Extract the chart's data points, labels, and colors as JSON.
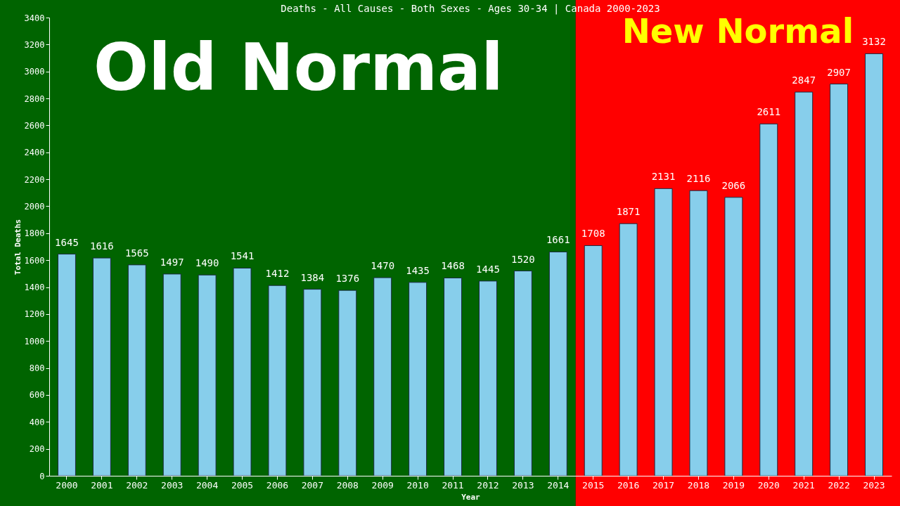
{
  "chart_data": {
    "type": "bar",
    "title": "Deaths - All Causes - Both Sexes - Ages 30-34 | Canada 2000-2023",
    "xlabel": "Year",
    "ylabel": "Total Deaths",
    "categories": [
      "2000",
      "2001",
      "2002",
      "2003",
      "2004",
      "2005",
      "2006",
      "2007",
      "2008",
      "2009",
      "2010",
      "2011",
      "2012",
      "2013",
      "2014",
      "2015",
      "2016",
      "2017",
      "2018",
      "2019",
      "2020",
      "2021",
      "2022",
      "2023"
    ],
    "values": [
      1645,
      1616,
      1565,
      1497,
      1490,
      1541,
      1412,
      1384,
      1376,
      1470,
      1435,
      1468,
      1445,
      1520,
      1661,
      1708,
      1871,
      2131,
      2116,
      2066,
      2611,
      2847,
      2907,
      3132
    ],
    "color": "#87ceeb",
    "data_labels": true,
    "grid": false,
    "ylim": [
      0,
      3400
    ],
    "yticks": [
      0,
      200,
      400,
      600,
      800,
      1000,
      1200,
      1400,
      1600,
      1800,
      2000,
      2200,
      2400,
      2600,
      2800,
      3000,
      3200,
      3400
    ],
    "bands": [
      {
        "axis": "x",
        "from": "2000",
        "to": "2014",
        "label": "Old Normal",
        "color": "#006400"
      },
      {
        "axis": "x",
        "from": "2015",
        "to": "2023",
        "label": "New Normal",
        "color": "#ff0000"
      }
    ]
  }
}
